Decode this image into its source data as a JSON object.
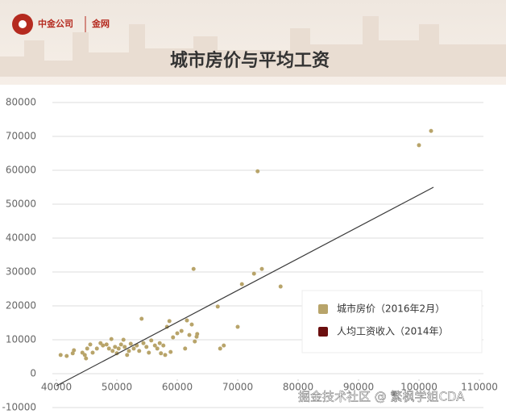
{
  "header": {
    "brand": "中金公司",
    "channel": "金网"
  },
  "watermark": "掘金技术社区 @ 繁枫学姐CDA",
  "chart_data": {
    "type": "scatter",
    "title": "城市房价与平均工资",
    "series": [
      {
        "name": "城市房价（2016年2月）",
        "color": "#b8a46a",
        "x": [
          40700,
          41700,
          42700,
          42900,
          44300,
          44700,
          44900,
          45100,
          45600,
          46000,
          46700,
          47300,
          47700,
          48300,
          48700,
          49100,
          49300,
          49700,
          50000,
          50300,
          50700,
          51100,
          51300,
          51700,
          52000,
          52300,
          52800,
          53300,
          53700,
          54100,
          54400,
          54900,
          55300,
          55700,
          56300,
          56700,
          57100,
          57300,
          57700,
          58000,
          58300,
          58700,
          58900,
          59300,
          60000,
          60700,
          61300,
          61600,
          62000,
          62400,
          62700,
          62900,
          63200,
          63300,
          66700,
          67100,
          67700,
          70000,
          70700,
          72700,
          73300,
          74000,
          77100,
          100000,
          102000
        ],
        "values": [
          5500,
          5200,
          6000,
          6900,
          6200,
          5500,
          4500,
          7400,
          8600,
          6200,
          7400,
          9000,
          8300,
          8600,
          7400,
          10200,
          6700,
          7900,
          6000,
          7400,
          8600,
          10000,
          7900,
          5500,
          6700,
          8800,
          7400,
          8300,
          6700,
          16200,
          9000,
          7900,
          6200,
          9800,
          8300,
          7400,
          9000,
          6000,
          8300,
          5500,
          13800,
          15500,
          6400,
          10700,
          11900,
          12600,
          7400,
          15700,
          11400,
          14500,
          30900,
          9500,
          10900,
          11700,
          19800,
          7400,
          8300,
          13800,
          26400,
          29500,
          59700,
          30900,
          25700,
          67400,
          71600
        ]
      },
      {
        "name": "人均工资收入（2014年）",
        "color": "#6b0f0f",
        "x": [],
        "values": []
      }
    ],
    "trendline": {
      "x": [
        40000,
        102400
      ],
      "y": [
        -3600,
        55000
      ],
      "color": "#3a3a3a"
    },
    "xlim": [
      40000,
      110000
    ],
    "xticks": [
      40000,
      50000,
      60000,
      70000,
      80000,
      90000,
      100000,
      110000
    ],
    "ylim": [
      -10000,
      80000
    ],
    "yticks": [
      -10000,
      0,
      10000,
      20000,
      30000,
      40000,
      50000,
      60000,
      70000,
      80000
    ],
    "grid": true
  }
}
